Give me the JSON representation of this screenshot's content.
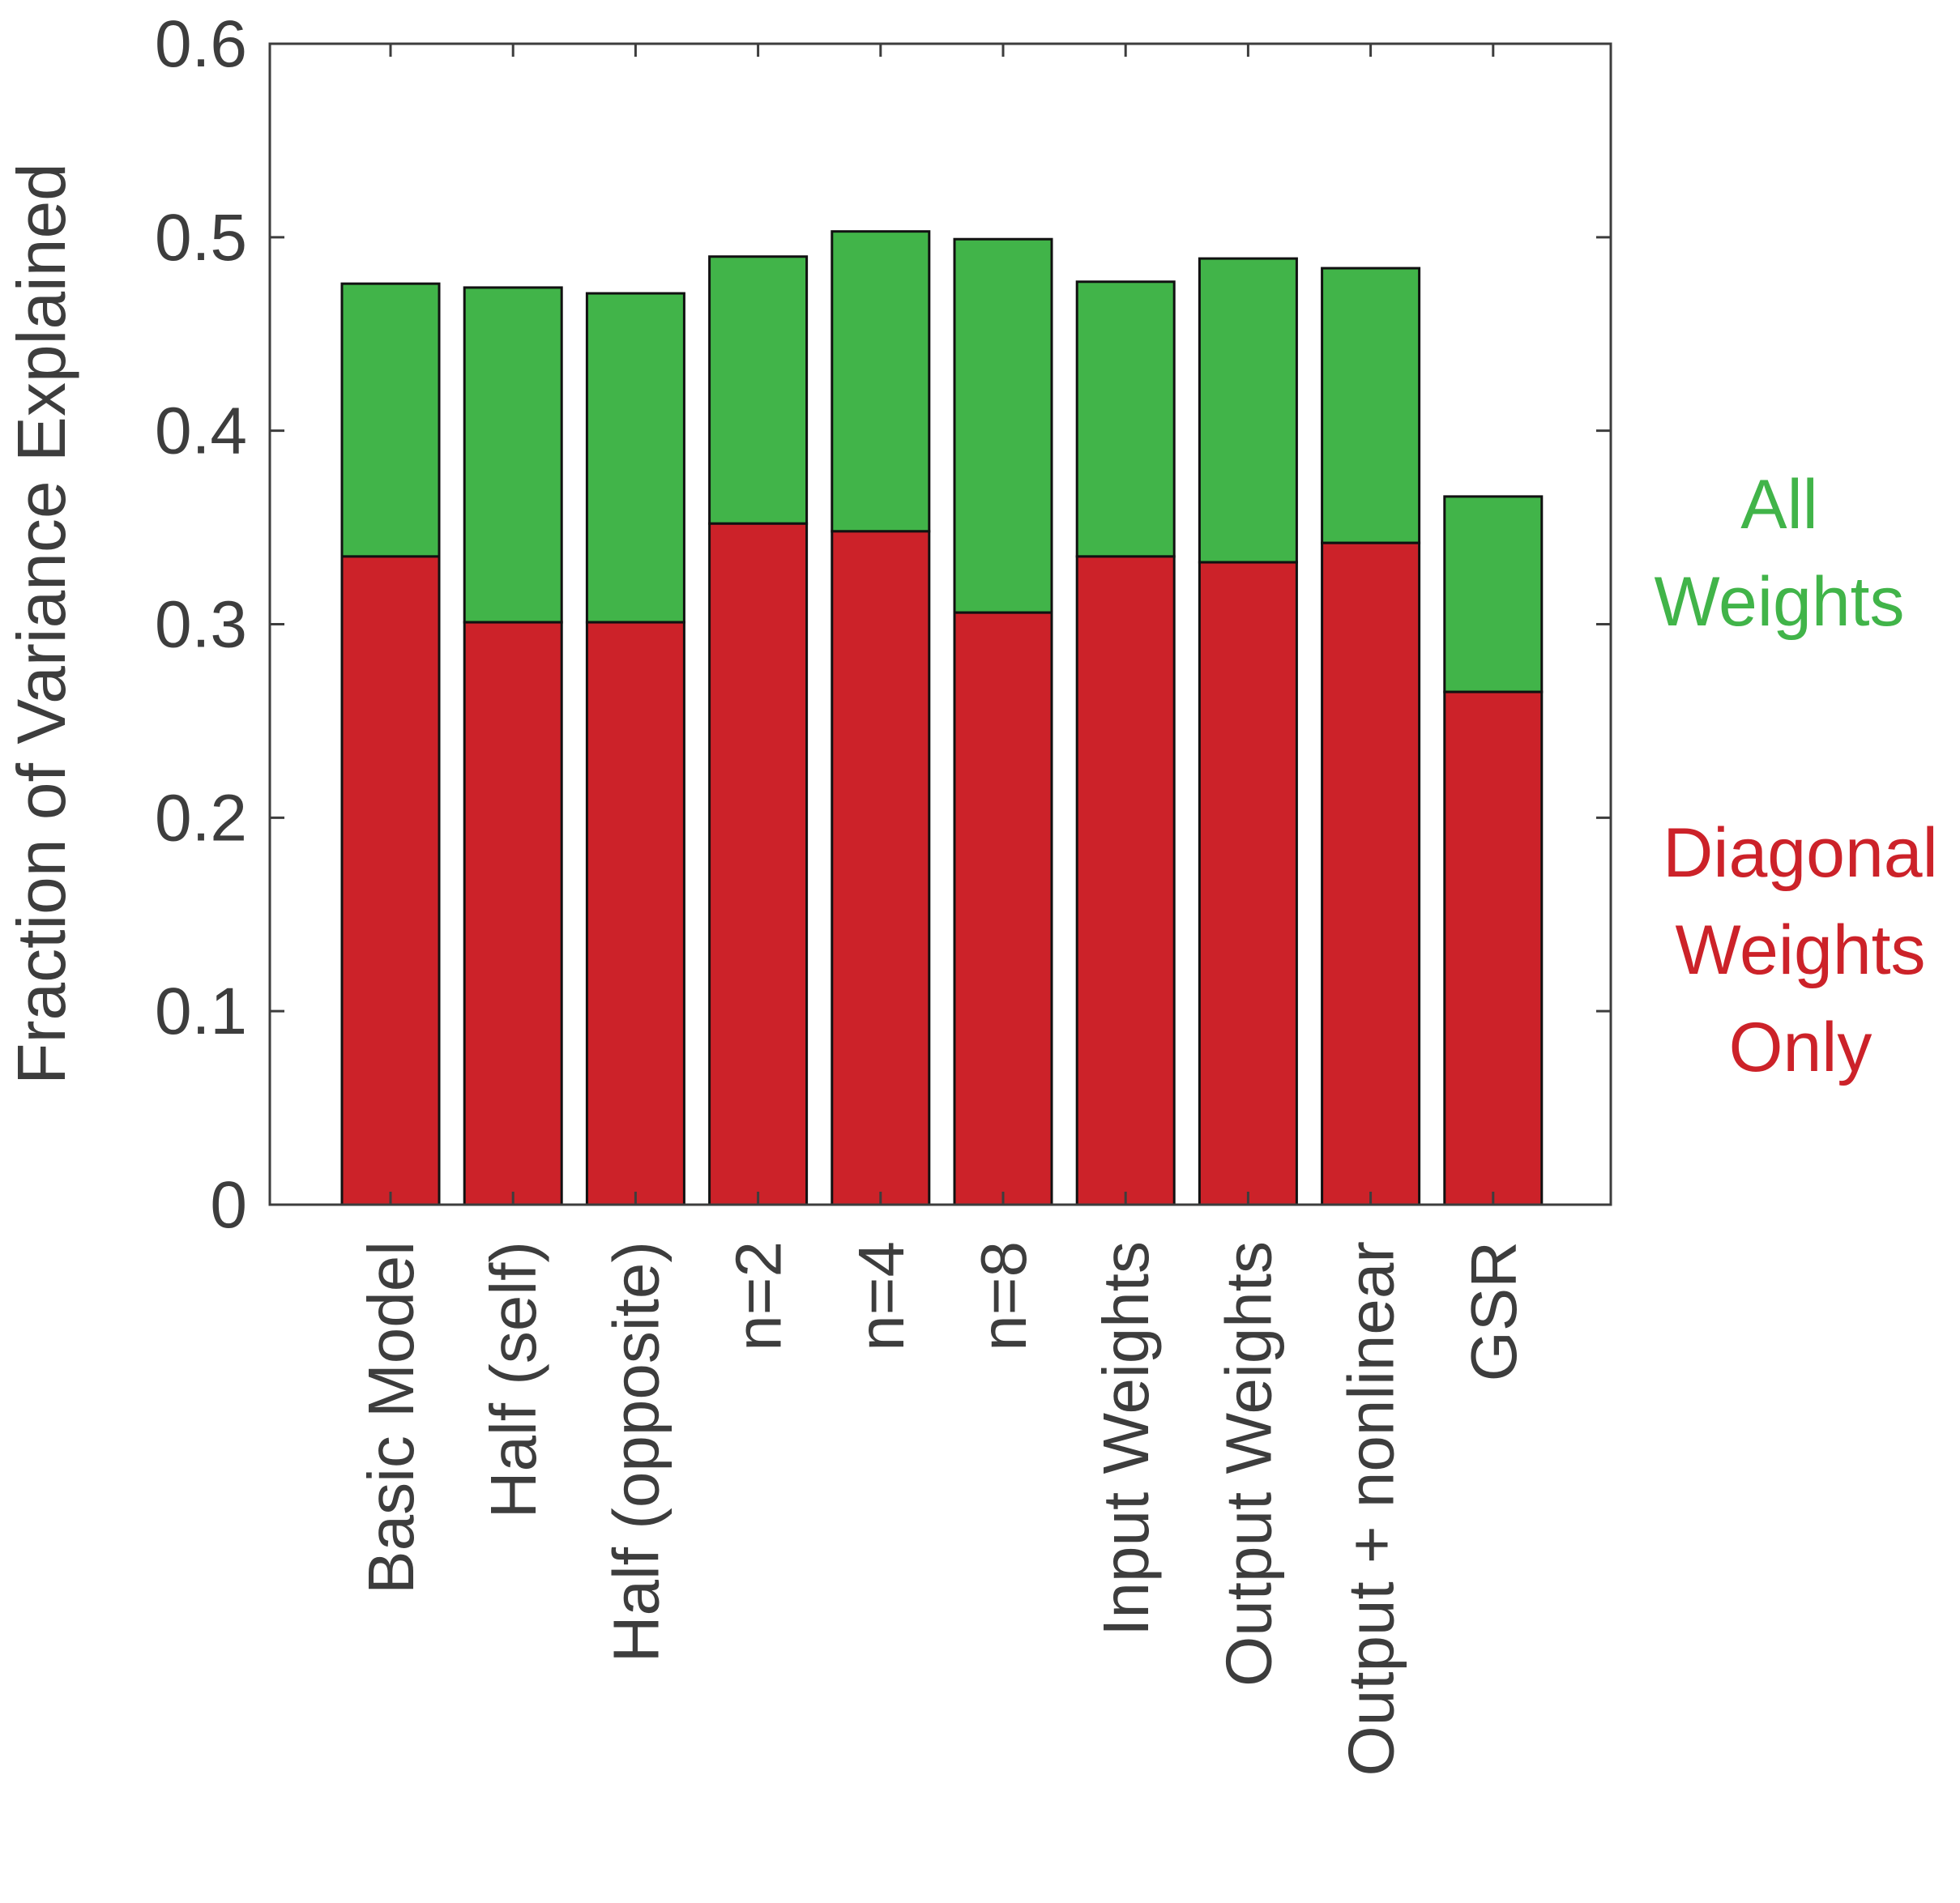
{
  "chart_data": {
    "type": "bar",
    "stacked": true,
    "title": "",
    "xlabel": "",
    "ylabel": "Fraction of Variance Explained",
    "ylim": [
      0,
      0.6
    ],
    "yticks": [
      "0",
      "0.1",
      "0.2",
      "0.3",
      "0.4",
      "0.5",
      "0.6"
    ],
    "categories": [
      "Basic Model",
      "Half (self)",
      "Half (opposite)",
      "n=2",
      "n=4",
      "n=8",
      "Input Weights",
      "Output Weights",
      "Output + nonlinear",
      "GSR"
    ],
    "series": [
      {
        "name": "Diagonal Weights Only",
        "color": "#cc2229",
        "values": [
          0.335,
          0.301,
          0.301,
          0.352,
          0.348,
          0.306,
          0.335,
          0.332,
          0.342,
          0.265
        ]
      },
      {
        "name": "All Weights",
        "color": "#41b449",
        "totals": [
          0.476,
          0.474,
          0.471,
          0.49,
          0.503,
          0.499,
          0.477,
          0.489,
          0.484,
          0.366
        ]
      }
    ],
    "legend": {
      "all_weights": [
        "All",
        "Weights"
      ],
      "diagonal_weights": [
        "Diagonal",
        "Weights",
        "Only"
      ]
    }
  }
}
